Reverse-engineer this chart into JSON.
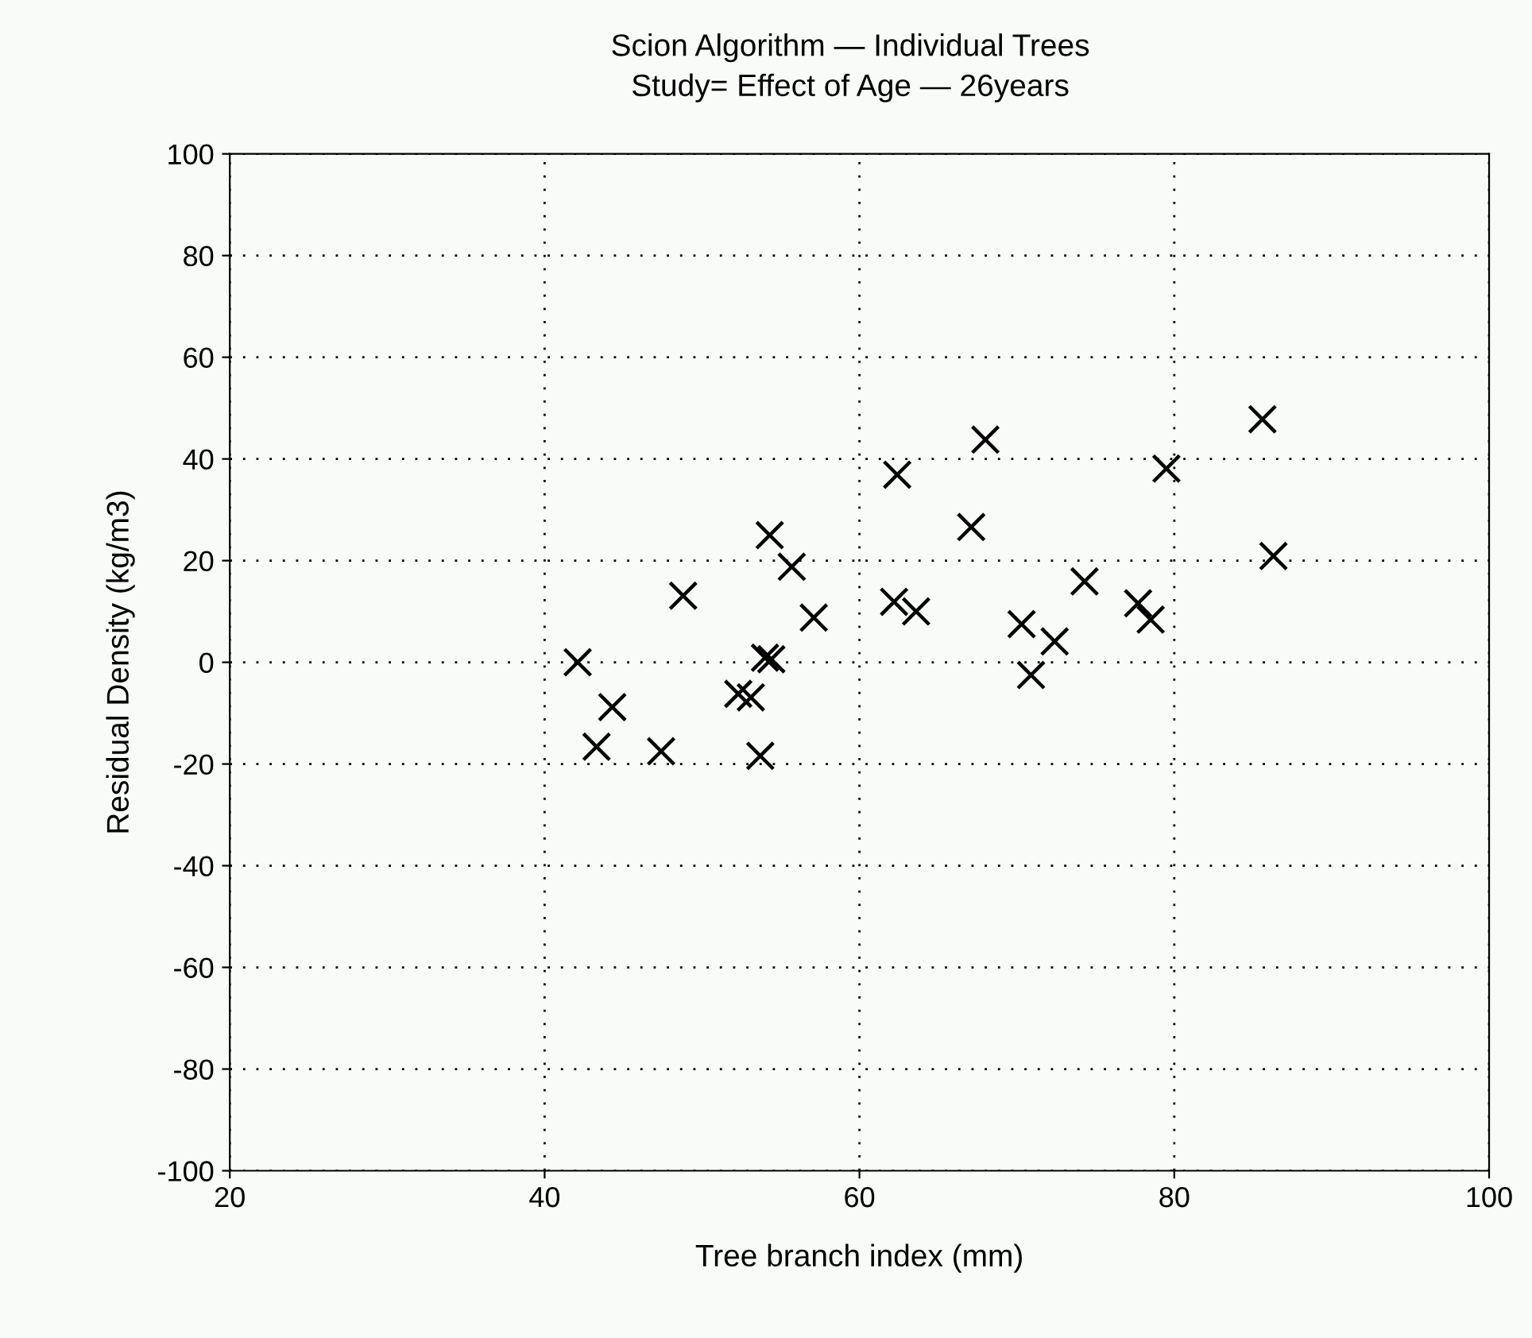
{
  "chart_data": {
    "type": "scatter",
    "title": "Scion Algorithm — Individual Trees",
    "subtitle": "Study= Effect of Age — 26years",
    "xlabel": "Tree branch index (mm)",
    "ylabel": "Residual Density (kg/m3)",
    "series": [
      {
        "color": "#000000",
        "x": [
          68.0,
          62.4,
          67.1,
          54.3,
          55.7,
          48.8,
          57.1,
          62.2,
          63.6,
          42.1,
          54.0,
          54.4,
          52.3,
          53.1,
          44.3,
          43.3,
          47.4,
          53.7,
          79.5,
          85.6,
          86.3,
          74.3,
          70.3,
          72.4,
          70.9,
          77.7,
          78.5
        ],
        "values": [
          43.8,
          36.9,
          26.6,
          25,
          18.8,
          13.1,
          8.8,
          11.9,
          10,
          0,
          0.9,
          0.6,
          -6.2,
          -6.9,
          -8.8,
          -16.6,
          -17.5,
          -18.4,
          38.1,
          47.8,
          20.9,
          15.9,
          7.5,
          4.1,
          -2.5,
          11.6,
          8.4
        ]
      }
    ],
    "xlim": [
      20,
      100
    ],
    "xticks": [
      20,
      40,
      60,
      80,
      100
    ],
    "ylim": [
      -100,
      100
    ],
    "yticks": [
      -100,
      -80,
      -60,
      -40,
      -20,
      0,
      20,
      40,
      60,
      80,
      100
    ],
    "grid": true,
    "marker": "cross"
  }
}
